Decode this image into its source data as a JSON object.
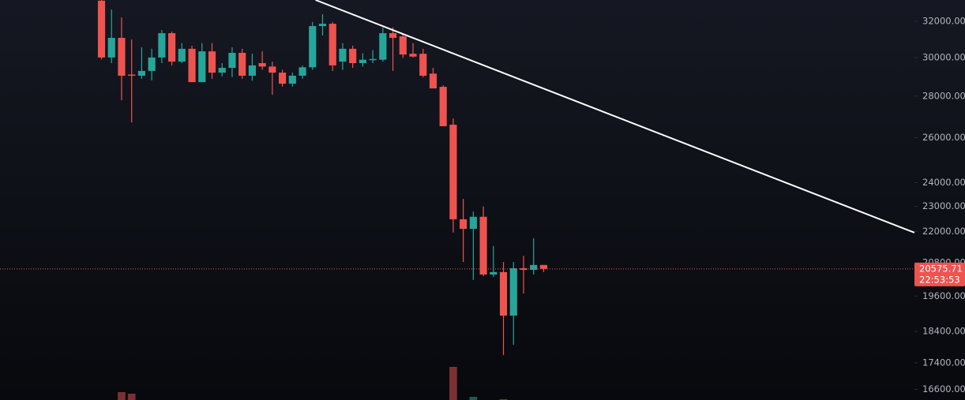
{
  "chart_data": {
    "type": "candlestick",
    "log_scale": true,
    "grid": false,
    "up_color": "#26a69a",
    "down_color": "#ef5350",
    "volume_up_color": "#1d5c56",
    "volume_down_color": "#7c3033",
    "xlim": [
      -10.1,
      80.9
    ],
    "ylim": [
      16285,
      33240
    ],
    "yticks": [
      {
        "value": 16600,
        "label": "16600.00"
      },
      {
        "value": 17400,
        "label": "17400.00"
      },
      {
        "value": 18400,
        "label": "18400.00"
      },
      {
        "value": 19600,
        "label": "19600.00"
      },
      {
        "value": 20800,
        "label": "20800.00"
      },
      {
        "value": 22000,
        "label": "22000.00"
      },
      {
        "value": 23000,
        "label": "23000.00"
      },
      {
        "value": 24000,
        "label": "24000.00"
      },
      {
        "value": 26000,
        "label": "26000.00"
      },
      {
        "value": 28000,
        "label": "28000.00"
      },
      {
        "value": 30000,
        "label": "30000.00"
      },
      {
        "value": 32000,
        "label": "32000.00"
      }
    ],
    "open": [
      33200,
      30000,
      31070,
      29100,
      29040,
      29290,
      30000,
      31330,
      29780,
      30470,
      28710,
      30330,
      29200,
      29450,
      30250,
      29040,
      29700,
      29520,
      29200,
      28630,
      29040,
      29480,
      31730,
      31860,
      29780,
      30470,
      29700,
      29880,
      29880,
      31330,
      31150,
      30200,
      30200,
      29150,
      28470,
      26610,
      22480,
      22100,
      22580,
      20370,
      20460,
      18930,
      20600,
      20540,
      20720
    ],
    "high": [
      33500,
      32680,
      32225,
      30980,
      30550,
      30470,
      31510,
      31420,
      30780,
      30640,
      30780,
      30780,
      29700,
      30550,
      30470,
      30200,
      30330,
      29780,
      29350,
      29200,
      29580,
      31960,
      32410,
      31960,
      30780,
      30640,
      30230,
      30400,
      31650,
      31650,
      31330,
      30780,
      30470,
      29450,
      28550,
      26910,
      23310,
      22790,
      23000,
      21430,
      20830,
      20830,
      21060,
      21730,
      20720
    ],
    "low": [
      29900,
      29700,
      27800,
      26720,
      28880,
      28800,
      29700,
      29580,
      29700,
      28710,
      28710,
      28880,
      29010,
      28970,
      28880,
      28780,
      29350,
      28070,
      28480,
      28480,
      28880,
      29350,
      31200,
      29290,
      29350,
      29450,
      29520,
      29700,
      29780,
      29290,
      29980,
      30000,
      28960,
      28390,
      26540,
      21950,
      20830,
      20170,
      20310,
      20280,
      17640,
      17970,
      19690,
      20370,
      20460
    ],
    "close": [
      30000,
      31070,
      29040,
      29040,
      29290,
      30000,
      31330,
      29780,
      30470,
      28710,
      30330,
      29200,
      29450,
      30250,
      29040,
      29580,
      29520,
      29200,
      28630,
      29040,
      29480,
      31730,
      31860,
      29580,
      30470,
      29700,
      29880,
      29920,
      31330,
      31070,
      30160,
      30050,
      29040,
      28390,
      26540,
      22480,
      22100,
      22580,
      20370,
      20460,
      18930,
      20600,
      20540,
      20720,
      20575.71
    ],
    "volume": [
      0,
      0,
      10,
      8,
      0,
      0,
      0,
      0,
      0,
      0,
      0,
      0,
      0,
      0,
      0,
      0,
      0,
      0,
      0,
      0,
      0,
      0,
      0,
      0,
      0,
      0,
      0,
      0,
      0,
      0,
      0,
      0,
      0,
      0,
      0,
      42,
      0,
      4,
      0,
      0,
      1,
      0,
      0,
      0,
      0
    ],
    "trendline": {
      "color": "#ffffff",
      "x": [
        21.3,
        80.9
      ],
      "y": [
        33240,
        21950
      ]
    },
    "last_price": {
      "value": 20575.71,
      "label": "20575.71"
    },
    "countdown": "22:53:53"
  }
}
